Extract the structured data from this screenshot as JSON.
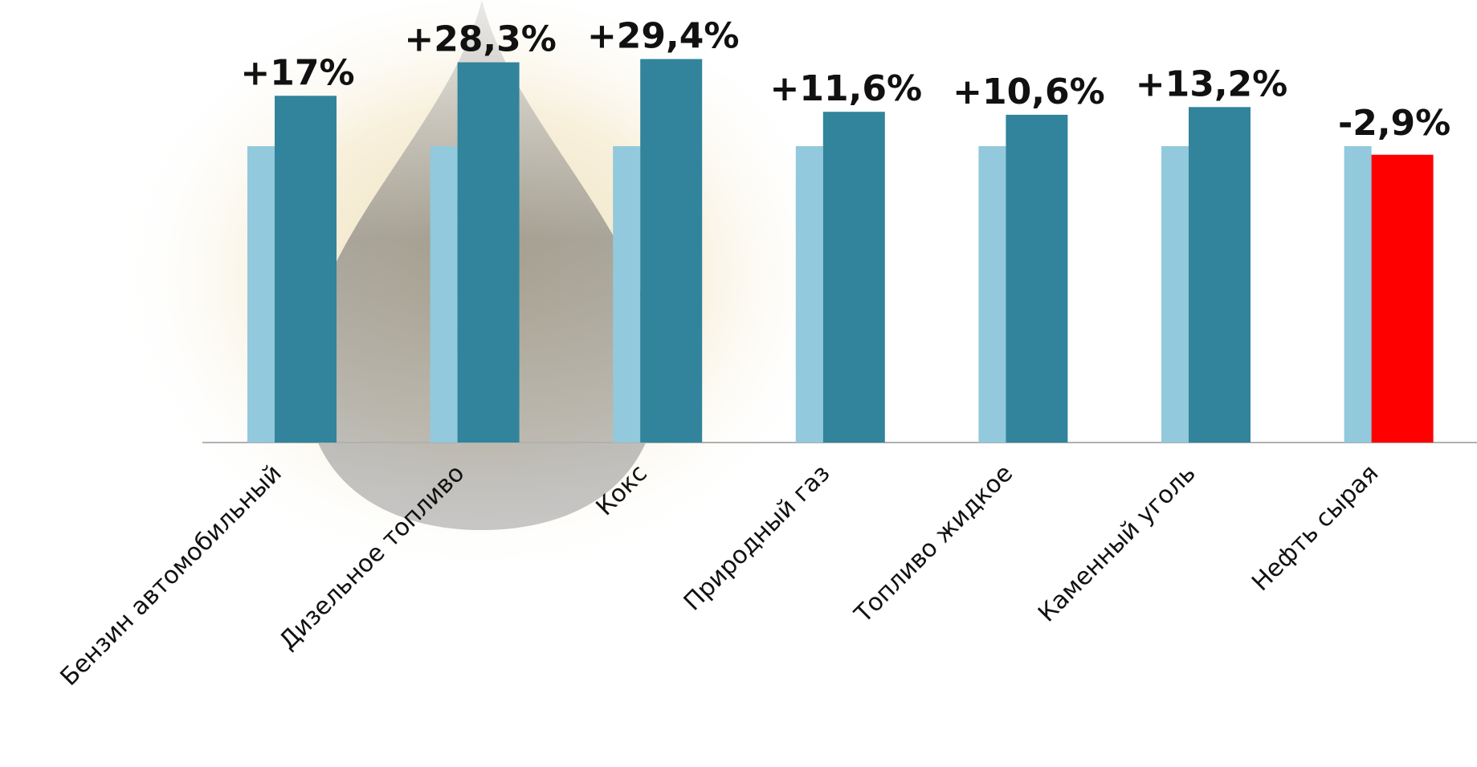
{
  "chart_data": {
    "type": "bar",
    "categories": [
      "Бензин автомобильный",
      "Дизельное топливо",
      "Кокс",
      "Природный газ",
      "Топливо жидкое",
      "Каменный уголь",
      "Нефть сырая"
    ],
    "series": [
      {
        "color": "#92c9dc",
        "values": [
          100,
          100,
          100,
          100,
          100,
          100,
          100
        ]
      },
      {
        "color": "#31849b",
        "values": [
          17,
          28.3,
          29.4,
          11.6,
          10.6,
          13.2,
          -2.9
        ],
        "value_labels": [
          "+17%",
          "+28,3%",
          "+29,4%",
          "+11,6%",
          "+10,6%",
          "+13,2%",
          "-2,9%"
        ]
      }
    ],
    "negative_color": "#ff0000"
  }
}
